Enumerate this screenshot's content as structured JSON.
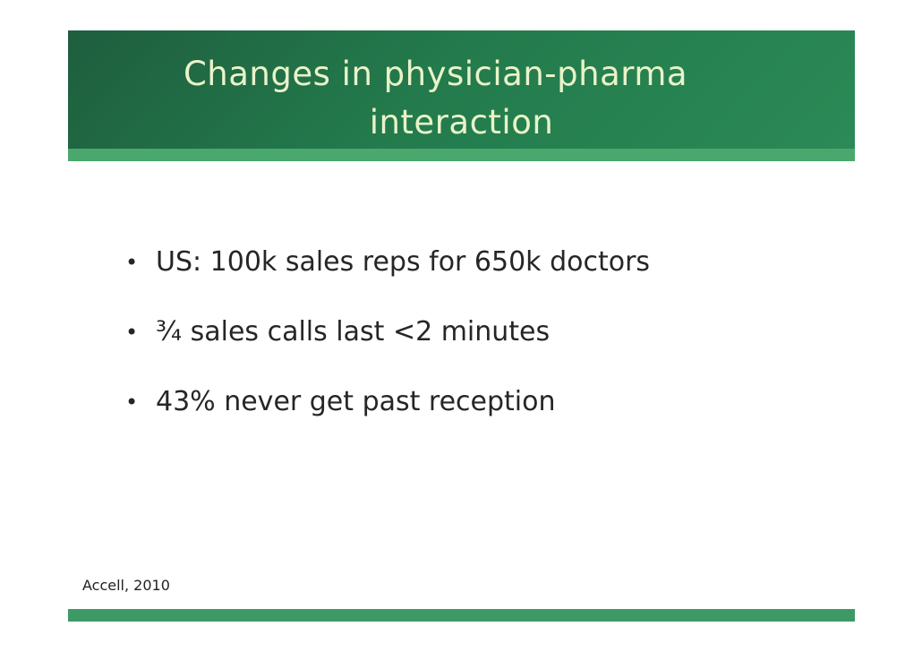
{
  "slide": {
    "title_line_1": "Changes in physician-pharma",
    "title_line_2": "interaction",
    "bullet_glyph": "•",
    "bullets": [
      "US: 100k sales reps for 650k doctors",
      "¾ sales calls last <2 minutes",
      "43% never get past reception"
    ],
    "source": "Accell, 2010"
  },
  "colors": {
    "title_band": "#237a4c",
    "title_text": "#e9f3c9",
    "accent_stripe": "#4aa86e",
    "footer_bar": "#3d9a65"
  }
}
